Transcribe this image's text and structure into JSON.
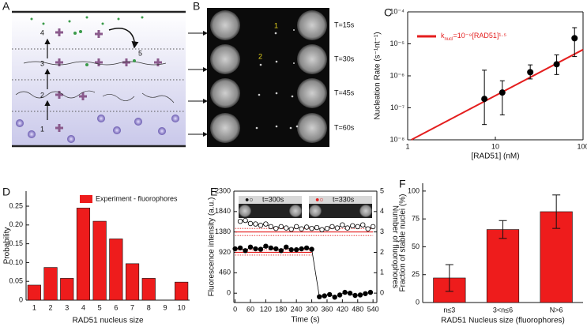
{
  "schematic": {
    "panel_label": "A",
    "steps": [
      "1",
      "2",
      "3",
      "4",
      "5"
    ]
  },
  "micrograph": {
    "panel_label": "B",
    "spot_labels": [
      "1",
      "2"
    ],
    "time_labels": [
      "T=15s",
      "T=30s",
      "T=45s",
      "T=60s"
    ]
  },
  "chart_data": [
    {
      "panel_label": "C",
      "type": "scatter",
      "xlabel": "[RAD51] (nM)",
      "ylabel": "Nucleation Rate (s⁻¹nt⁻¹)",
      "xlog": true,
      "ylog": true,
      "xlim": [
        1,
        100
      ],
      "ylim": [
        1e-08,
        0.0001
      ],
      "xticks": [
        1,
        10,
        100
      ],
      "yticks": [
        {
          "value": 1e-08,
          "label": "10⁻⁸"
        },
        {
          "value": 1e-07,
          "label": "10⁻⁷"
        },
        {
          "value": 1e-06,
          "label": "10⁻⁶"
        },
        {
          "value": 1e-05,
          "label": "10⁻⁵"
        },
        {
          "value": 0.0001,
          "label": "10⁻⁴"
        }
      ],
      "series": [
        {
          "color": "#000000",
          "x": [
            7.5,
            12,
            25,
            50,
            80
          ],
          "values": [
            1.9e-07,
            3e-07,
            1.3e-06,
            2.3e-06,
            1.5e-05
          ],
          "lower": [
            3e-08,
            6e-08,
            8e-07,
            1.1e-06,
            4e-06
          ],
          "upper": [
            1.5e-06,
            7e-07,
            2.2e-06,
            4.5e-06,
            3.2e-05
          ]
        }
      ],
      "fit": {
        "name_parts": [
          "k",
          "nucl",
          "=10⁻⁹[RAD51]¹·⁵"
        ],
        "color": "#e41e1e",
        "x": [
          1.1,
          100
        ],
        "values": [
          1e-08,
          6.6e-06
        ]
      },
      "legend": "upper left"
    },
    {
      "panel_label": "D",
      "type": "bar",
      "categories": [
        "1",
        "2",
        "3",
        "4",
        "5",
        "6",
        "7",
        "8",
        "9",
        "10"
      ],
      "series": [
        {
          "name": "Experiment - fluorophores",
          "color": "#ee1c1c",
          "values": [
            0.04,
            0.087,
            0.058,
            0.245,
            0.21,
            0.163,
            0.097,
            0.058,
            0,
            0.048
          ]
        }
      ],
      "ylim": [
        0,
        0.29
      ],
      "yticks": [
        0,
        0.05,
        {
          "value": 0.1,
          "label": "0.10"
        },
        0.15,
        {
          "value": 0.2,
          "label": "0.20"
        },
        0.25
      ],
      "xlabel": "RAD51 nucleus size",
      "ylabel": "Probability",
      "legend": "upper right"
    },
    {
      "panel_label": "E",
      "type": "line",
      "xlabel": "Time (s)",
      "ylabel": "Fluorescence intensity (a.u.)",
      "y2label": "Number of fluorophores",
      "xlim": [
        -5,
        555
      ],
      "xticks": [
        0,
        60,
        120,
        180,
        240,
        300,
        360,
        420,
        480,
        540
      ],
      "ylim": [
        -210,
        2300
      ],
      "yticks": [
        0,
        460,
        920,
        1380,
        1840,
        2300
      ],
      "y2lim": [
        -0.46,
        5
      ],
      "y2ticks": [
        0,
        1,
        2,
        3,
        4,
        5
      ],
      "series": [
        {
          "marker": "filled",
          "color": "#000000",
          "x": [
            0,
            20,
            40,
            60,
            80,
            100,
            120,
            140,
            160,
            180,
            200,
            220,
            240,
            260,
            280,
            300,
            330,
            350,
            370,
            390,
            410,
            430,
            450,
            470,
            490,
            510,
            530
          ],
          "values": [
            1000,
            1020,
            960,
            1040,
            1000,
            990,
            1060,
            1020,
            1000,
            960,
            1040,
            980,
            980,
            1000,
            1020,
            990,
            -80,
            -60,
            -30,
            -90,
            -40,
            20,
            0,
            -50,
            -40,
            -10,
            20
          ]
        },
        {
          "marker": "open",
          "color": "#000000",
          "x": [
            20,
            40,
            60,
            80,
            100,
            120,
            140,
            160,
            180,
            200,
            220,
            240,
            260,
            280,
            300,
            320,
            340,
            360,
            380,
            400,
            420,
            440,
            460,
            480,
            500,
            520,
            540
          ],
          "values": [
            1620,
            1640,
            1570,
            1560,
            1530,
            1560,
            1500,
            1460,
            1500,
            1470,
            1440,
            1500,
            1450,
            1490,
            1460,
            1480,
            1430,
            1460,
            1500,
            1470,
            1540,
            1470,
            1520,
            1500,
            1540,
            1450,
            1500
          ]
        }
      ],
      "hlines": [
        {
          "value": 1380,
          "color": "#e41e1e",
          "style": "solid",
          "x": [
            0,
            540
          ]
        },
        {
          "value": 1300,
          "color": "#e41e1e",
          "style": "dotted",
          "x": [
            0,
            540
          ]
        },
        {
          "value": 1460,
          "color": "#e41e1e",
          "style": "dotted",
          "x": [
            0,
            540
          ]
        },
        {
          "value": 920,
          "color": "#e41e1e",
          "style": "solid",
          "x": [
            0,
            300
          ]
        },
        {
          "value": 860,
          "color": "#e41e1e",
          "style": "dotted",
          "x": [
            0,
            300
          ]
        },
        {
          "value": 980,
          "color": "#e41e1e",
          "style": "dotted",
          "x": [
            0,
            300
          ]
        }
      ],
      "insets": [
        {
          "markers": "●○",
          "label": "t=300s"
        },
        {
          "markers": "●○",
          "label": "t=330s"
        }
      ]
    },
    {
      "panel_label": "F",
      "type": "bar",
      "categories": [
        "n≤3",
        "3<n≤6",
        "N>6"
      ],
      "series": [
        {
          "color": "#ee1c1c",
          "values": [
            22,
            65.5,
            81.5
          ],
          "errors": [
            12,
            8,
            15
          ]
        }
      ],
      "ylim": [
        0,
        107
      ],
      "yticks": [
        0,
        25,
        50,
        75,
        100
      ],
      "xlabel": "RAD51 Nucleus size (fluorophores)",
      "ylabel": "Fraction of stable nuclei (%)"
    }
  ]
}
